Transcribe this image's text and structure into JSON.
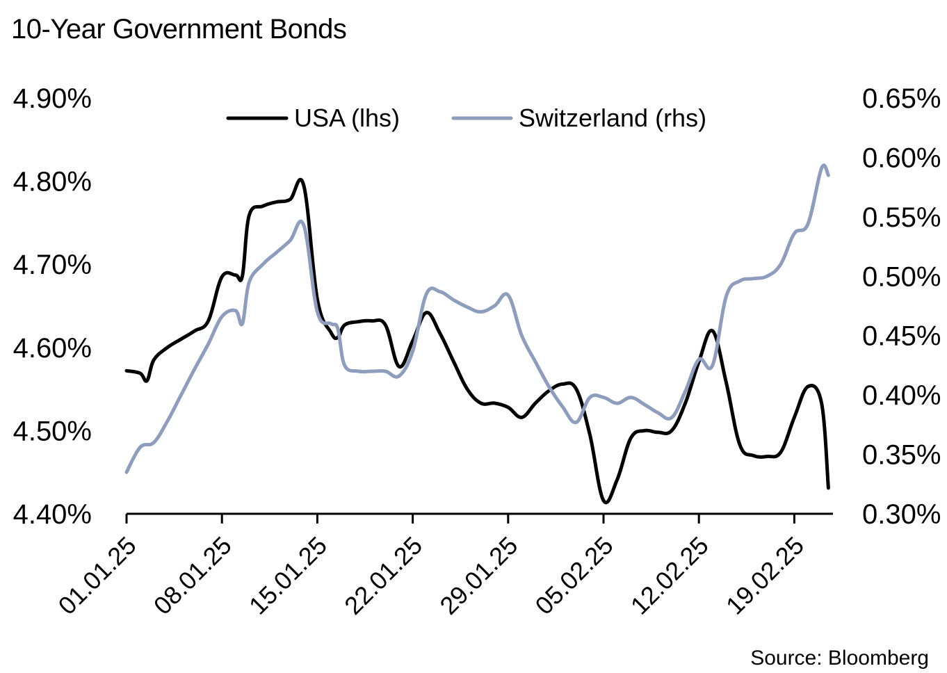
{
  "chart_data": {
    "type": "line",
    "title": "10-Year Government Bonds",
    "source": "Source: Bloomberg",
    "xlabel": "",
    "x_ticks": [
      "01.01.25",
      "08.01.25",
      "15.01.25",
      "22.01.25",
      "29.01.25",
      "05.02.25",
      "12.02.25",
      "19.02.25"
    ],
    "x_tick_days": [
      0,
      7,
      14,
      21,
      28,
      35,
      42,
      49
    ],
    "x_range_days": [
      0,
      52
    ],
    "y_left": {
      "label": "USA (lhs)",
      "ticks": [
        "4.90%",
        "4.80%",
        "4.70%",
        "4.60%",
        "4.50%",
        "4.40%"
      ],
      "tick_values": [
        4.9,
        4.8,
        4.7,
        4.6,
        4.5,
        4.4
      ],
      "ylim": [
        4.4,
        4.9
      ]
    },
    "y_right": {
      "label": "Switzerland (rhs)",
      "ticks": [
        "0.65%",
        "0.60%",
        "0.55%",
        "0.50%",
        "0.45%",
        "0.40%",
        "0.35%",
        "0.30%"
      ],
      "tick_values": [
        0.65,
        0.6,
        0.55,
        0.5,
        0.45,
        0.4,
        0.35,
        0.3
      ],
      "ylim": [
        0.3,
        0.65
      ]
    },
    "grid": false,
    "legend_position": "top-center",
    "series": [
      {
        "name": "USA (lhs)",
        "axis": "left",
        "color": "#000000",
        "x_days": [
          0,
          1,
          1.5,
          2,
          3,
          4,
          5,
          6,
          7,
          8,
          8.5,
          9,
          10,
          11,
          12,
          13,
          14,
          15,
          15.5,
          16,
          17,
          18,
          19,
          20,
          21,
          22,
          23,
          24,
          25,
          26,
          27,
          28,
          29,
          30,
          31,
          32,
          33,
          34,
          35,
          36,
          37,
          38,
          39,
          40,
          41,
          42,
          43,
          44,
          45,
          46,
          47,
          48,
          49,
          50,
          51,
          51.5
        ],
        "values": [
          4.572,
          4.569,
          4.56,
          4.585,
          4.6,
          4.61,
          4.62,
          4.632,
          4.685,
          4.687,
          4.686,
          4.759,
          4.77,
          4.775,
          4.778,
          4.795,
          4.658,
          4.618,
          4.612,
          4.627,
          4.631,
          4.632,
          4.627,
          4.577,
          4.608,
          4.642,
          4.617,
          4.583,
          4.55,
          4.533,
          4.533,
          4.528,
          4.516,
          4.533,
          4.548,
          4.556,
          4.55,
          4.495,
          4.416,
          4.441,
          4.491,
          4.5,
          4.498,
          4.5,
          4.533,
          4.583,
          4.62,
          4.558,
          4.483,
          4.47,
          4.469,
          4.474,
          4.516,
          4.553,
          4.533,
          4.431
        ]
      },
      {
        "name": "Switzerland (rhs)",
        "axis": "right",
        "color": "#8e9dbd",
        "x_days": [
          0,
          1,
          2,
          3,
          4,
          5,
          6,
          7,
          8,
          8.5,
          9,
          10,
          11,
          12,
          13,
          14,
          15,
          15.5,
          16,
          17,
          18,
          19,
          20,
          21,
          22,
          23,
          24,
          25,
          26,
          27,
          28,
          29,
          30,
          31,
          32,
          33,
          34,
          35,
          36,
          37,
          38,
          39,
          40,
          41,
          42,
          43,
          44,
          45,
          46,
          47,
          48,
          49,
          50,
          51,
          51.5
        ],
        "values": [
          0.335,
          0.356,
          0.36,
          0.378,
          0.4,
          0.422,
          0.443,
          0.466,
          0.471,
          0.46,
          0.495,
          0.51,
          0.52,
          0.53,
          0.543,
          0.47,
          0.46,
          0.456,
          0.425,
          0.42,
          0.42,
          0.42,
          0.416,
          0.437,
          0.485,
          0.487,
          0.48,
          0.474,
          0.47,
          0.475,
          0.484,
          0.45,
          0.428,
          0.407,
          0.39,
          0.377,
          0.398,
          0.398,
          0.393,
          0.398,
          0.392,
          0.385,
          0.381,
          0.403,
          0.43,
          0.425,
          0.483,
          0.496,
          0.498,
          0.5,
          0.51,
          0.536,
          0.544,
          0.591,
          0.585
        ]
      }
    ]
  }
}
